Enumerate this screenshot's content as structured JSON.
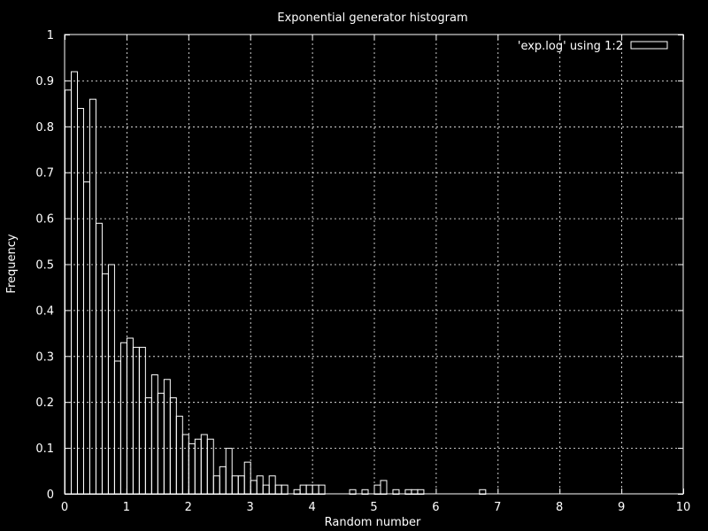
{
  "chart_data": {
    "type": "bar",
    "title": "Exponential generator histogram",
    "xlabel": "Random number",
    "ylabel": "Frequency",
    "xlim": [
      0,
      10
    ],
    "ylim": [
      0,
      1
    ],
    "bin_width": 0.1,
    "x_ticks": [
      "0",
      "1",
      "2",
      "3",
      "4",
      "5",
      "6",
      "7",
      "8",
      "9",
      "10"
    ],
    "y_ticks": [
      "0",
      "0.1",
      "0.2",
      "0.3",
      "0.4",
      "0.5",
      "0.6",
      "0.7",
      "0.8",
      "0.9",
      "1"
    ],
    "grid": true,
    "legend_position": "top-right",
    "series": [
      {
        "name": "'exp.log' using 1:2",
        "x": [
          0.0,
          0.1,
          0.2,
          0.3,
          0.4,
          0.5,
          0.6,
          0.7,
          0.8,
          0.9,
          1.0,
          1.1,
          1.2,
          1.3,
          1.4,
          1.5,
          1.6,
          1.7,
          1.8,
          1.9,
          2.0,
          2.1,
          2.2,
          2.3,
          2.4,
          2.5,
          2.6,
          2.7,
          2.8,
          2.9,
          3.0,
          3.1,
          3.2,
          3.3,
          3.4,
          3.5,
          3.6,
          3.7,
          3.8,
          3.9,
          4.0,
          4.1,
          4.2,
          4.3,
          4.4,
          4.5,
          4.6,
          4.7,
          4.8,
          4.9,
          5.0,
          5.1,
          5.2,
          5.3,
          5.4,
          5.5,
          5.6,
          5.7,
          5.8,
          5.9,
          6.0,
          6.1,
          6.2,
          6.3,
          6.4,
          6.5,
          6.6,
          6.7,
          6.8
        ],
        "values": [
          0.88,
          0.92,
          0.84,
          0.68,
          0.86,
          0.59,
          0.48,
          0.5,
          0.29,
          0.33,
          0.34,
          0.32,
          0.32,
          0.21,
          0.26,
          0.22,
          0.25,
          0.21,
          0.17,
          0.13,
          0.11,
          0.12,
          0.13,
          0.12,
          0.04,
          0.06,
          0.1,
          0.04,
          0.04,
          0.07,
          0.03,
          0.04,
          0.02,
          0.04,
          0.02,
          0.02,
          0.0,
          0.01,
          0.02,
          0.02,
          0.02,
          0.02,
          0.0,
          0.0,
          0.0,
          0.0,
          0.01,
          0.0,
          0.01,
          0.0,
          0.02,
          0.03,
          0.0,
          0.01,
          0.0,
          0.01,
          0.01,
          0.01,
          0.0,
          0.0,
          0.0,
          0.0,
          0.0,
          0.0,
          0.0,
          0.0,
          0.0,
          0.01,
          0.0
        ]
      }
    ]
  },
  "colors": {
    "background": "#000000",
    "foreground": "#ffffff",
    "grid": "#ffffff"
  }
}
